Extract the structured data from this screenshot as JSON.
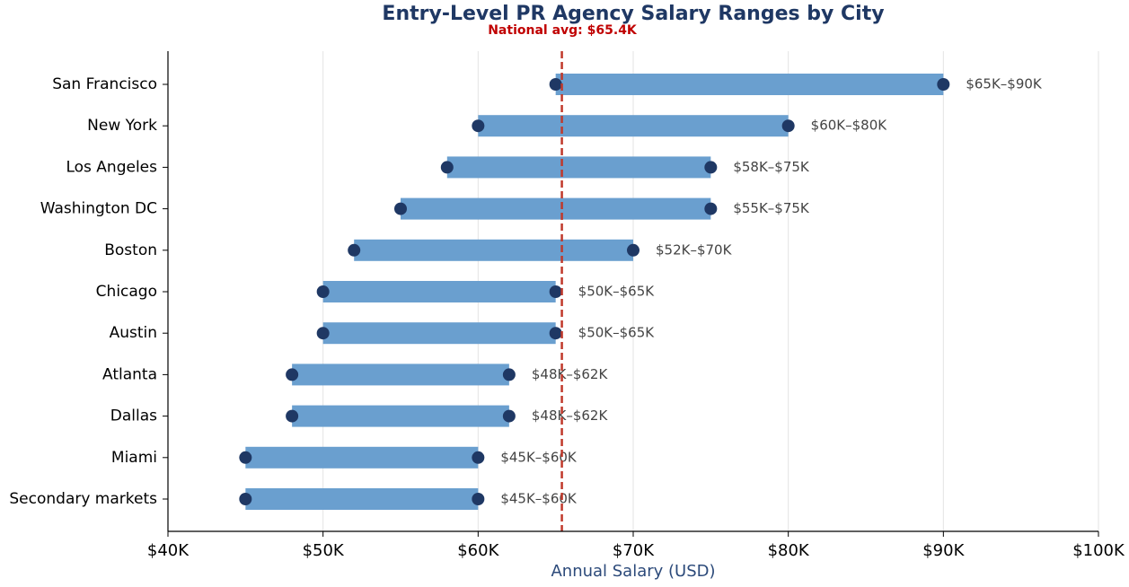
{
  "chart_data": {
    "type": "range",
    "title": "Entry-Level PR Agency Salary Ranges by City",
    "reference_line": {
      "value": 65400,
      "label": "National avg: $65.4K",
      "color": "#c0392b"
    },
    "categories": [
      "San Francisco",
      "New York",
      "Los Angeles",
      "Washington DC",
      "Boston",
      "Chicago",
      "Austin",
      "Atlanta",
      "Dallas",
      "Miami",
      "Secondary markets"
    ],
    "low": [
      65000,
      60000,
      58000,
      55000,
      52000,
      50000,
      50000,
      48000,
      48000,
      45000,
      45000
    ],
    "high": [
      90000,
      80000,
      75000,
      75000,
      70000,
      65000,
      65000,
      62000,
      62000,
      60000,
      60000
    ],
    "value_labels": [
      "$65K–$90K",
      "$60K–$80K",
      "$58K–$75K",
      "$55K–$75K",
      "$52K–$70K",
      "$50K–$65K",
      "$50K–$65K",
      "$48K–$62K",
      "$48K–$62K",
      "$45K–$60K",
      "$45K–$60K"
    ],
    "bar_color": "#6a9fcf",
    "dot_color": "#1f3864",
    "xlabel": "Annual Salary (USD)",
    "xlim": [
      40000,
      100000
    ],
    "xticks": [
      {
        "value": 40000,
        "label": "$40K"
      },
      {
        "value": 50000,
        "label": "$50K"
      },
      {
        "value": 60000,
        "label": "$60K"
      },
      {
        "value": 70000,
        "label": "$70K"
      },
      {
        "value": 80000,
        "label": "$80K"
      },
      {
        "value": 90000,
        "label": "$90K"
      },
      {
        "value": 100000,
        "label": "$100K"
      }
    ],
    "grid": true
  }
}
